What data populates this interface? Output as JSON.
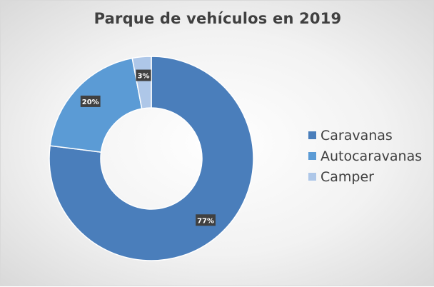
{
  "chart_data": {
    "type": "pie",
    "title": "Parque de vehículos en 2019",
    "categories": [
      "Caravanas",
      "Autocaravanas",
      "Camper"
    ],
    "values": [
      77,
      20,
      3
    ],
    "value_labels": [
      "77%",
      "20%",
      "3%"
    ],
    "colors": [
      "#4a7ebb",
      "#5b9bd5",
      "#aec7e8"
    ],
    "donut": true,
    "legend": "right"
  }
}
